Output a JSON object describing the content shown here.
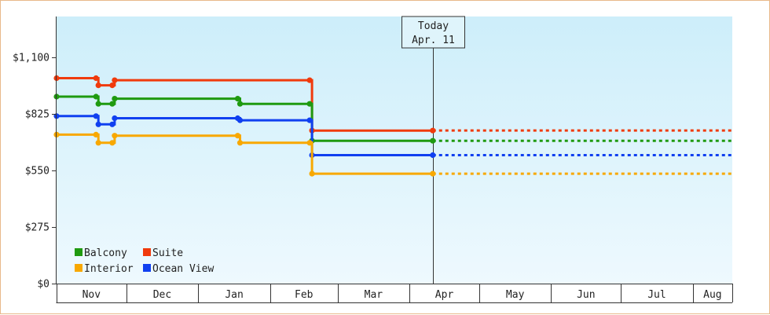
{
  "chart_data": {
    "type": "line",
    "subtype": "step",
    "y_ticks": [
      "$0",
      "$275",
      "$550",
      "$825",
      "$1,100"
    ],
    "ylim": [
      0,
      1300
    ],
    "x_months": [
      "Nov",
      "Dec",
      "Jan",
      "Feb",
      "Mar",
      "Apr",
      "May",
      "Jun",
      "Jul",
      "Aug"
    ],
    "x_start": "2019-11-01",
    "x_end": "2020-08-18",
    "today": {
      "label_line1": "Today",
      "label_line2": "Apr. 11",
      "date": "2020-04-11"
    },
    "forecast_end": "2020-08-18",
    "legend_position": "bottom-left",
    "grid": false,
    "colors": {
      "background_top": "#cdeefa",
      "background_bottom": "#eef9fe",
      "axis": "#333333",
      "frame": "#e8b98a"
    },
    "series": [
      {
        "name": "Suite",
        "color": "#f03a0c",
        "points": [
          [
            "2019-11-01",
            1000
          ],
          [
            "2019-11-18",
            1000
          ],
          [
            "2019-11-19",
            965
          ],
          [
            "2019-11-25",
            965
          ],
          [
            "2019-11-26",
            990
          ],
          [
            "2020-02-18",
            990
          ],
          [
            "2020-02-19",
            745
          ],
          [
            "2020-04-11",
            745
          ]
        ]
      },
      {
        "name": "Balcony",
        "color": "#1f9a10",
        "points": [
          [
            "2019-11-01",
            910
          ],
          [
            "2019-11-18",
            910
          ],
          [
            "2019-11-19",
            875
          ],
          [
            "2019-11-25",
            875
          ],
          [
            "2019-11-26",
            900
          ],
          [
            "2020-01-18",
            900
          ],
          [
            "2020-01-19",
            875
          ],
          [
            "2020-02-18",
            875
          ],
          [
            "2020-02-19",
            695
          ],
          [
            "2020-04-11",
            695
          ]
        ]
      },
      {
        "name": "Ocean View",
        "color": "#1040f0",
        "points": [
          [
            "2019-11-01",
            815
          ],
          [
            "2019-11-18",
            815
          ],
          [
            "2019-11-19",
            775
          ],
          [
            "2019-11-25",
            775
          ],
          [
            "2019-11-26",
            805
          ],
          [
            "2020-01-18",
            805
          ],
          [
            "2020-01-19",
            795
          ],
          [
            "2020-02-18",
            795
          ],
          [
            "2020-02-19",
            625
          ],
          [
            "2020-04-11",
            625
          ]
        ]
      },
      {
        "name": "Interior",
        "color": "#f8a800",
        "points": [
          [
            "2019-11-01",
            725
          ],
          [
            "2019-11-18",
            725
          ],
          [
            "2019-11-19",
            685
          ],
          [
            "2019-11-25",
            685
          ],
          [
            "2019-11-26",
            720
          ],
          [
            "2020-01-18",
            720
          ],
          [
            "2020-01-19",
            685
          ],
          [
            "2020-02-18",
            685
          ],
          [
            "2020-02-19",
            535
          ],
          [
            "2020-04-11",
            535
          ]
        ]
      }
    ],
    "legend": [
      {
        "name": "Balcony",
        "color": "#1f9a10"
      },
      {
        "name": "Suite",
        "color": "#f03a0c"
      },
      {
        "name": "Interior",
        "color": "#f8a800"
      },
      {
        "name": "Ocean View",
        "color": "#1040f0"
      }
    ]
  }
}
